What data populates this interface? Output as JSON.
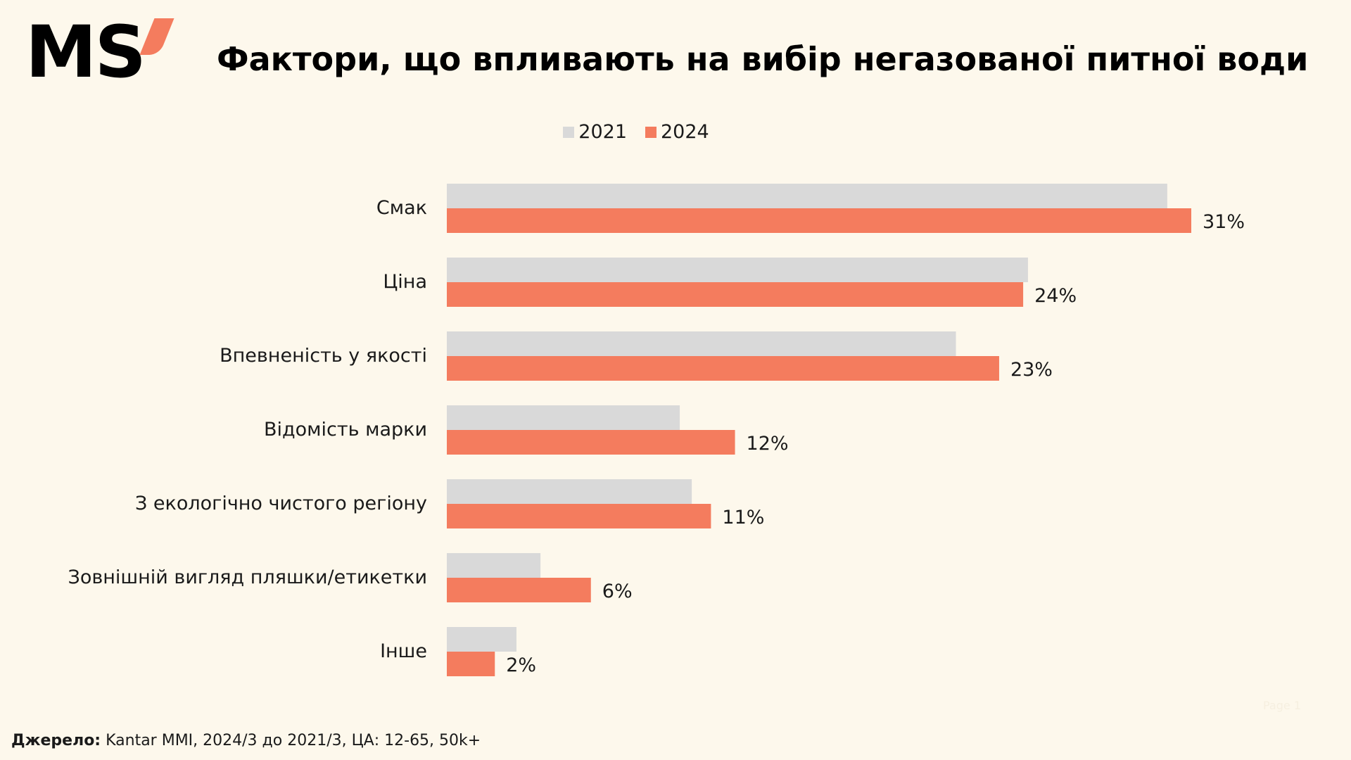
{
  "brand": {
    "logo_text": "MS",
    "accent_color": "#f47c5e"
  },
  "footer": {
    "source_label": "Джерело:",
    "source_text": "Kantar MMI, 2024/3 до 2021/3, ЦА: 12-65, 50k+",
    "page_marker": "Page 1"
  },
  "chart_data": {
    "type": "bar",
    "orientation": "horizontal",
    "title": "Фактори, що впливають на вибір негазованої питної води",
    "categories": [
      "Смак",
      "Ціна",
      "Впевненість у якості",
      "Відомість марки",
      "З екологічно чистого регіону",
      "Зовнішній вигляд пляшки/етикетки",
      "Інше"
    ],
    "series": [
      {
        "name": "2021",
        "color": "#d9d9d9",
        "values": [
          30,
          24.2,
          21.2,
          9.7,
          10.2,
          3.9,
          2.9
        ]
      },
      {
        "name": "2024",
        "color": "#f47c5e",
        "values": [
          31,
          24,
          23,
          12,
          11,
          6,
          2
        ]
      }
    ],
    "data_labels": [
      "31%",
      "24%",
      "23%",
      "12%",
      "11%",
      "6%",
      "2%"
    ],
    "xlim": [
      0,
      31
    ],
    "legend_position": "top",
    "grid": false
  }
}
